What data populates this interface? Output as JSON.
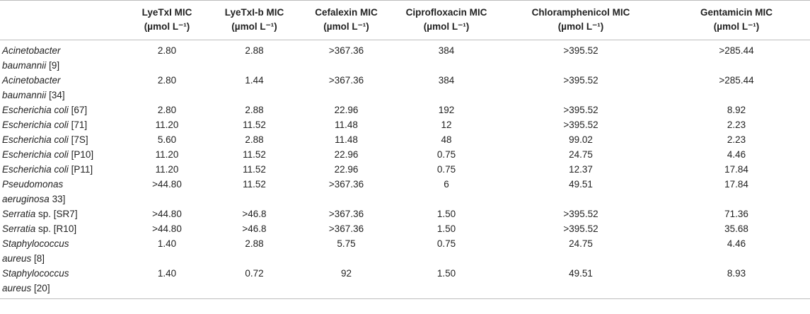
{
  "headers": [
    {
      "line1": "",
      "line2": ""
    },
    {
      "line1": "LyeTxI MIC",
      "line2": "(µmol L⁻¹)"
    },
    {
      "line1": "LyeTxI-b MIC",
      "line2": "(µmol L⁻¹)"
    },
    {
      "line1": "Cefalexin MIC",
      "line2": "(µmol L⁻¹)"
    },
    {
      "line1": "Ciprofloxacin MIC",
      "line2": "(µmol L⁻¹)"
    },
    {
      "line1": "Chloramphenicol MIC",
      "line2": "(µmol L⁻¹)"
    },
    {
      "line1": "Gentamicin MIC",
      "line2": "(µmol L⁻¹)"
    }
  ],
  "rows": [
    {
      "species_line1": "Acinetobacter",
      "species_line2": "baumannii",
      "strain": "[9]",
      "values": [
        "2.80",
        "2.88",
        ">367.36",
        "384",
        ">395.52",
        ">285.44"
      ]
    },
    {
      "species_line1": "Acinetobacter",
      "species_line2": "baumannii",
      "strain": "[34]",
      "values": [
        "2.80",
        "1.44",
        ">367.36",
        "384",
        ">395.52",
        ">285.44"
      ]
    },
    {
      "species_line1": "Escherichia coli",
      "species_line2": "",
      "strain": "[67]",
      "values": [
        "2.80",
        "2.88",
        "22.96",
        "192",
        ">395.52",
        "8.92"
      ]
    },
    {
      "species_line1": "Escherichia coli",
      "species_line2": "",
      "strain": "[71]",
      "values": [
        "11.20",
        "11.52",
        "11.48",
        "12",
        ">395.52",
        "2.23"
      ]
    },
    {
      "species_line1": "Escherichia coli",
      "species_line2": "",
      "strain": "[7S]",
      "values": [
        "5.60",
        "2.88",
        "11.48",
        "48",
        "99.02",
        "2.23"
      ]
    },
    {
      "species_line1": "Escherichia coli",
      "species_line2": "",
      "strain": "[P10]",
      "values": [
        "11.20",
        "11.52",
        "22.96",
        "0.75",
        "24.75",
        "4.46"
      ]
    },
    {
      "species_line1": "Escherichia coli",
      "species_line2": "",
      "strain": "[P11]",
      "values": [
        "11.20",
        "11.52",
        "22.96",
        "0.75",
        "12.37",
        "17.84"
      ]
    },
    {
      "species_line1": "Pseudomonas",
      "species_line2": "aeruginosa",
      "strain": "33]",
      "values": [
        ">44.80",
        "11.52",
        ">367.36",
        "6",
        "49.51",
        "17.84"
      ]
    },
    {
      "species_line1": "Serratia",
      "species_line2": "",
      "strain": "sp. [SR7]",
      "values": [
        ">44.80",
        ">46.8",
        ">367.36",
        "1.50",
        ">395.52",
        "71.36"
      ]
    },
    {
      "species_line1": "Serratia",
      "species_line2": "",
      "strain": "sp. [R10]",
      "values": [
        ">44.80",
        ">46.8",
        ">367.36",
        "1.50",
        ">395.52",
        "35.68"
      ]
    },
    {
      "species_line1": "Staphylococcus",
      "species_line2": "aureus",
      "strain": "[8]",
      "values": [
        "1.40",
        "2.88",
        "5.75",
        "0.75",
        "24.75",
        "4.46"
      ]
    },
    {
      "species_line1": "Staphylococcus",
      "species_line2": "aureus",
      "strain": "[20]",
      "values": [
        "1.40",
        "0.72",
        "92",
        "1.50",
        "49.51",
        "8.93"
      ]
    }
  ]
}
